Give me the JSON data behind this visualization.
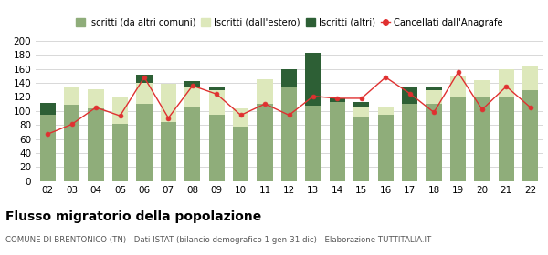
{
  "years": [
    "02",
    "03",
    "04",
    "05",
    "06",
    "07",
    "08",
    "09",
    "10",
    "11",
    "12",
    "13",
    "14",
    "15",
    "16",
    "17",
    "18",
    "19",
    "20",
    "21",
    "22"
  ],
  "comuni": [
    94,
    109,
    103,
    81,
    110,
    84,
    105,
    95,
    78,
    110,
    133,
    107,
    113,
    91,
    94,
    110,
    110,
    121,
    121,
    120,
    130
  ],
  "estero": [
    0,
    25,
    28,
    40,
    30,
    55,
    30,
    35,
    25,
    35,
    0,
    0,
    0,
    14,
    12,
    0,
    20,
    30,
    23,
    40,
    35
  ],
  "altri": [
    18,
    0,
    0,
    0,
    12,
    0,
    7,
    5,
    0,
    0,
    27,
    76,
    5,
    8,
    0,
    24,
    5,
    0,
    0,
    0,
    0
  ],
  "cancellati": [
    67,
    81,
    105,
    93,
    148,
    90,
    136,
    124,
    94,
    110,
    94,
    121,
    118,
    118,
    148,
    125,
    98,
    155,
    102,
    135,
    105
  ],
  "color_comuni": "#8fad7a",
  "color_estero": "#dde8bb",
  "color_altri": "#2d5f35",
  "color_cancellati": "#e03030",
  "bg_color": "#ffffff",
  "grid_color": "#d8d8d8",
  "title": "Flusso migratorio della popolazione",
  "subtitle": "COMUNE DI BRENTONICO (TN) - Dati ISTAT (bilancio demografico 1 gen-31 dic) - Elaborazione TUTTITALIA.IT",
  "legend_labels": [
    "Iscritti (da altri comuni)",
    "Iscritti (dall'estero)",
    "Iscritti (altri)",
    "Cancellati dall'Anagrafe"
  ],
  "ylim": [
    0,
    200
  ],
  "yticks": [
    0,
    20,
    40,
    60,
    80,
    100,
    120,
    140,
    160,
    180,
    200
  ]
}
